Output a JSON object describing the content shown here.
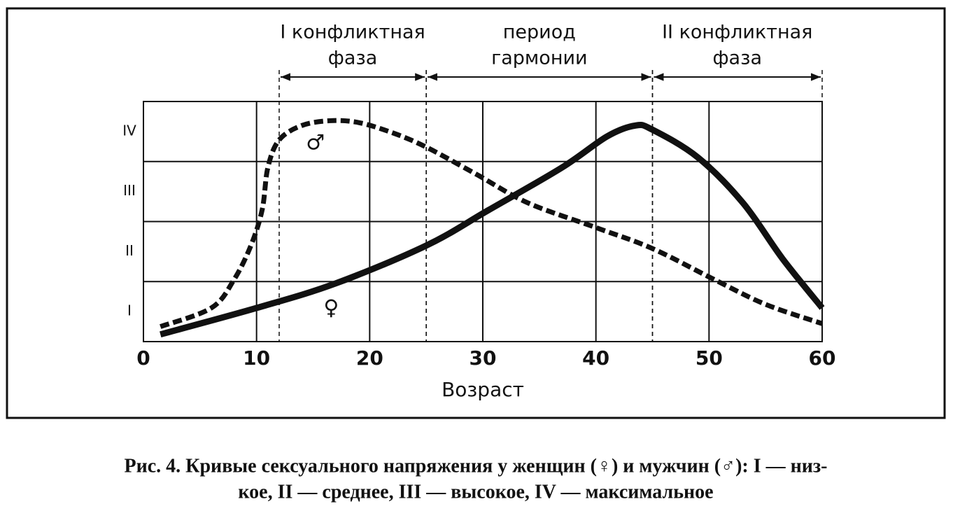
{
  "chart_data": {
    "type": "line",
    "xlabel": "Возраст",
    "xlim": [
      0,
      60
    ],
    "xticks": [
      0,
      10,
      20,
      30,
      40,
      50,
      60
    ],
    "ylim": [
      0,
      4
    ],
    "yticks": [
      {
        "value": 0.5,
        "label": "I"
      },
      {
        "value": 1.5,
        "label": "II"
      },
      {
        "value": 2.5,
        "label": "III"
      },
      {
        "value": 3.5,
        "label": "IV"
      }
    ],
    "ygrid": [
      1,
      2,
      3
    ],
    "grid": true,
    "phases": [
      {
        "label": [
          "I конфликтная",
          "фаза"
        ],
        "from": 12,
        "to": 25
      },
      {
        "label": [
          "период",
          "гармонии"
        ],
        "from": 25,
        "to": 45
      },
      {
        "label": [
          "II конфликтная",
          "фаза"
        ],
        "from": 45,
        "to": 60
      }
    ],
    "series": [
      {
        "name": "♂",
        "color": "#111111",
        "style": "dashed",
        "x": [
          1.5,
          6,
          8,
          9.5,
          10.5,
          11,
          12,
          14,
          16.5,
          19,
          22,
          25,
          29.5,
          34,
          40,
          45,
          50.5,
          55,
          60
        ],
        "values": [
          0.25,
          0.56,
          1.03,
          1.6,
          2.2,
          2.9,
          3.36,
          3.6,
          3.68,
          3.65,
          3.48,
          3.24,
          2.78,
          2.31,
          1.9,
          1.55,
          1.03,
          0.62,
          0.3
        ]
      },
      {
        "name": "♀",
        "color": "#111111",
        "style": "solid",
        "x": [
          1.5,
          10,
          17,
          25,
          30.5,
          37,
          41,
          43.5,
          45,
          49,
          53,
          56.5,
          60
        ],
        "values": [
          0.12,
          0.56,
          0.97,
          1.6,
          2.19,
          2.9,
          3.42,
          3.6,
          3.53,
          3.07,
          2.31,
          1.38,
          0.56
        ]
      }
    ],
    "caption": [
      "Рис. 4. Кривые сексуального напряжения у женщин (♀) и мужчин (♂): I — низ-",
      "кое, II — среднее, III — высокое, IV — максимальное"
    ]
  }
}
